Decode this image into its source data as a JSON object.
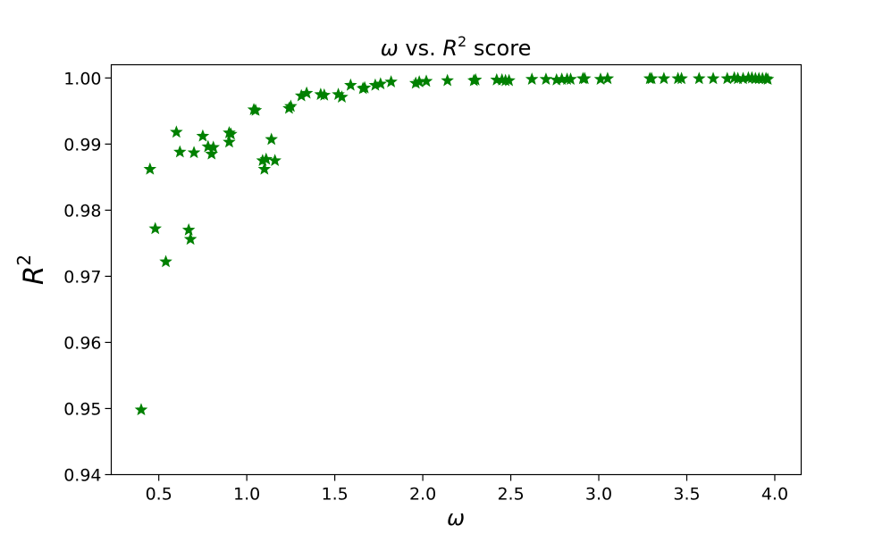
{
  "chart_data": {
    "type": "scatter",
    "title": {
      "prefix": "ω",
      "middle": " vs. ",
      "var": "R",
      "sup": "2",
      "suffix": " score"
    },
    "xlabel": "ω",
    "ylabel": {
      "base": "R",
      "sup": "2"
    },
    "xlim": [
      0.23,
      4.15
    ],
    "ylim": [
      0.94,
      1.002
    ],
    "xticks": [
      0.5,
      1.0,
      1.5,
      2.0,
      2.5,
      3.0,
      3.5,
      4.0
    ],
    "xtick_labels": [
      "0.5",
      "1.0",
      "1.5",
      "2.0",
      "2.5",
      "3.0",
      "3.5",
      "4.0"
    ],
    "yticks": [
      0.94,
      0.95,
      0.96,
      0.97,
      0.98,
      0.99,
      1.0
    ],
    "ytick_labels": [
      "0.94",
      "0.95",
      "0.96",
      "0.97",
      "0.98",
      "0.99",
      "1.00"
    ],
    "grid": false,
    "marker": "star",
    "color": "#008000",
    "x": [
      0.4,
      0.45,
      0.48,
      0.54,
      0.6,
      0.62,
      0.67,
      0.68,
      0.7,
      0.75,
      0.78,
      0.8,
      0.81,
      0.9,
      0.9,
      0.91,
      1.04,
      1.05,
      1.09,
      1.1,
      1.11,
      1.14,
      1.16,
      1.24,
      1.25,
      1.31,
      1.34,
      1.42,
      1.44,
      1.52,
      1.54,
      1.59,
      1.66,
      1.67,
      1.73,
      1.76,
      1.82,
      1.96,
      1.98,
      2.02,
      2.14,
      2.29,
      2.3,
      2.42,
      2.45,
      2.47,
      2.49,
      2.62,
      2.7,
      2.76,
      2.79,
      2.82,
      2.84,
      2.91,
      2.92,
      3.01,
      3.05,
      3.29,
      3.3,
      3.37,
      3.45,
      3.47,
      3.57,
      3.65,
      3.73,
      3.77,
      3.79,
      3.82,
      3.85,
      3.87,
      3.89,
      3.91,
      3.93,
      3.95,
      3.96
    ],
    "y": [
      0.9498,
      0.9862,
      0.9772,
      0.9722,
      0.9918,
      0.9888,
      0.977,
      0.9756,
      0.9887,
      0.9912,
      0.9896,
      0.9885,
      0.9895,
      0.9903,
      0.9917,
      0.9915,
      0.9952,
      0.9951,
      0.9875,
      0.9862,
      0.9877,
      0.9907,
      0.9875,
      0.9954,
      0.9957,
      0.9973,
      0.9977,
      0.9975,
      0.9974,
      0.9975,
      0.9971,
      0.9989,
      0.9984,
      0.9985,
      0.9989,
      0.9991,
      0.9994,
      0.9992,
      0.9994,
      0.9995,
      0.9996,
      0.9996,
      0.9997,
      0.9997,
      0.9997,
      0.9996,
      0.9996,
      0.9998,
      0.9998,
      0.9997,
      0.9998,
      0.9998,
      0.9998,
      0.9999,
      0.9999,
      0.9998,
      0.9999,
      0.9999,
      0.9999,
      0.9999,
      0.9999,
      0.9999,
      0.9999,
      0.9999,
      0.9999,
      1.0,
      0.9999,
      0.9999,
      1.0,
      1.0,
      0.9999,
      0.9999,
      0.9999,
      0.9999,
      0.9998
    ]
  }
}
